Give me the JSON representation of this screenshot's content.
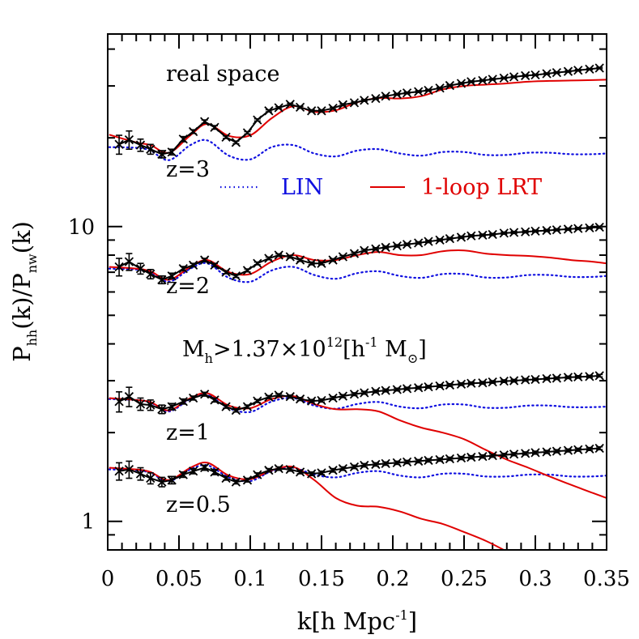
{
  "chart_data": {
    "type": "line",
    "title": "",
    "xlabel": {
      "main": "k[h Mpc",
      "sup": "-1",
      "close": "]"
    },
    "ylabel": {
      "a": "P",
      "a_sub": "hh",
      "b": "(k)/P",
      "b_sub": "nw",
      "c": "(k)"
    },
    "x_scale": "linear",
    "y_scale": "log",
    "xlim": [
      0,
      0.35
    ],
    "ylim": [
      0.8,
      45
    ],
    "x_ticks": [
      0,
      0.05,
      0.1,
      0.15,
      0.2,
      0.25,
      0.3,
      0.35
    ],
    "x_tick_labels": [
      "0",
      "0.05",
      "0.1",
      "0.15",
      "0.2",
      "0.25",
      "0.3",
      "0.35"
    ],
    "y_ticks": [
      1,
      10
    ],
    "y_tick_labels": [
      "1",
      "10"
    ],
    "annotations": {
      "real_space": "real space",
      "mass_cut": {
        "a": "M",
        "a_sub": "h",
        "b": ">1.37×10",
        "b_sup": "12",
        "c": "[h",
        "c_sup": "-1",
        "d": " M",
        "d_sub": "⊙",
        "e": "]"
      },
      "redshifts": [
        "z=3",
        "z=2",
        "z=1",
        "z=0.5"
      ]
    },
    "legend": {
      "placement": "upper-center",
      "entries": [
        {
          "label": "LIN",
          "style": "dotted",
          "color": "#1010e0"
        },
        {
          "label": "1-loop LRT",
          "style": "solid",
          "color": "#e00000"
        }
      ]
    },
    "colors": {
      "sim": "#000000",
      "lin": "#1010e0",
      "lrt": "#e00000"
    },
    "panels": [
      {
        "z": "3",
        "sim": {
          "x": [
            0.008,
            0.015,
            0.023,
            0.03,
            0.038,
            0.045,
            0.053,
            0.06,
            0.068,
            0.075,
            0.083,
            0.09,
            0.098,
            0.105,
            0.113,
            0.12,
            0.128,
            0.135,
            0.143,
            0.15,
            0.158,
            0.165,
            0.173,
            0.18,
            0.188,
            0.195,
            0.203,
            0.21,
            0.218,
            0.225,
            0.233,
            0.24,
            0.248,
            0.255,
            0.263,
            0.27,
            0.278,
            0.285,
            0.293,
            0.3,
            0.308,
            0.315,
            0.323,
            0.33,
            0.338,
            0.345
          ],
          "y": [
            19.0,
            19.7,
            18.9,
            18.3,
            17.6,
            17.9,
            19.8,
            21.0,
            22.7,
            21.7,
            20.1,
            19.3,
            20.8,
            23.0,
            24.7,
            25.3,
            26.0,
            25.4,
            24.7,
            24.7,
            25.2,
            25.9,
            26.3,
            26.8,
            27.2,
            27.7,
            28.1,
            28.4,
            28.7,
            29.0,
            29.5,
            30.1,
            30.6,
            31.0,
            31.3,
            31.6,
            31.9,
            32.2,
            32.5,
            32.7,
            33.0,
            33.3,
            33.6,
            33.9,
            34.2,
            34.5
          ],
          "err": [
            1.4,
            1.4,
            0.9,
            0.7,
            0.5,
            0.4,
            0.4,
            0.3,
            0.3,
            0.3,
            0.2,
            0.2,
            0.2,
            0.2,
            0.2,
            0.2,
            0.2,
            0.2,
            0.2,
            0.2,
            0.2,
            0.2,
            0.2,
            0.2,
            0.2,
            0.2,
            0.2,
            0.2,
            0.2,
            0.2,
            0.2,
            0.2,
            0.2,
            0.2,
            0.2,
            0.2,
            0.2,
            0.2,
            0.2,
            0.2,
            0.2,
            0.2,
            0.2,
            0.2,
            0.2,
            0.2
          ]
        },
        "lin": {
          "x": [
            0.001,
            0.02,
            0.03,
            0.043,
            0.058,
            0.07,
            0.085,
            0.1,
            0.115,
            0.13,
            0.145,
            0.16,
            0.175,
            0.19,
            0.205,
            0.22,
            0.235,
            0.25,
            0.265,
            0.28,
            0.295,
            0.31,
            0.325,
            0.34,
            0.35
          ],
          "y": [
            18.6,
            18.5,
            18.1,
            16.8,
            18.9,
            19.6,
            17.4,
            16.9,
            18.6,
            18.9,
            17.7,
            17.3,
            18.1,
            18.3,
            17.7,
            17.4,
            17.9,
            17.9,
            17.5,
            17.5,
            17.8,
            17.8,
            17.6,
            17.6,
            17.7
          ]
        },
        "lrt": {
          "x": [
            0.001,
            0.02,
            0.03,
            0.043,
            0.058,
            0.07,
            0.085,
            0.1,
            0.115,
            0.13,
            0.145,
            0.16,
            0.175,
            0.19,
            0.205,
            0.22,
            0.235,
            0.25,
            0.265,
            0.28,
            0.295,
            0.31,
            0.325,
            0.34,
            0.35
          ],
          "y": [
            20.5,
            19.3,
            18.9,
            17.8,
            20.4,
            22.3,
            20.3,
            20.4,
            23.3,
            25.6,
            24.5,
            24.8,
            26.4,
            27.3,
            27.2,
            27.7,
            29.2,
            30.0,
            30.3,
            30.6,
            31.0,
            31.2,
            31.3,
            31.4,
            31.5
          ]
        }
      },
      {
        "z": "2",
        "sim": {
          "x": [
            0.008,
            0.015,
            0.023,
            0.03,
            0.038,
            0.045,
            0.053,
            0.06,
            0.068,
            0.075,
            0.083,
            0.09,
            0.098,
            0.105,
            0.113,
            0.12,
            0.128,
            0.135,
            0.143,
            0.15,
            0.158,
            0.165,
            0.173,
            0.18,
            0.188,
            0.195,
            0.203,
            0.21,
            0.218,
            0.225,
            0.233,
            0.24,
            0.248,
            0.255,
            0.263,
            0.27,
            0.278,
            0.285,
            0.293,
            0.3,
            0.308,
            0.315,
            0.323,
            0.33,
            0.338,
            0.345
          ],
          "y": [
            7.3,
            7.6,
            7.2,
            6.9,
            6.6,
            6.8,
            7.2,
            7.4,
            7.7,
            7.4,
            7.0,
            6.8,
            7.1,
            7.5,
            7.8,
            8.0,
            7.9,
            7.7,
            7.5,
            7.5,
            7.7,
            7.9,
            8.1,
            8.3,
            8.4,
            8.5,
            8.6,
            8.7,
            8.8,
            8.9,
            9.0,
            9.1,
            9.2,
            9.3,
            9.35,
            9.4,
            9.5,
            9.55,
            9.6,
            9.65,
            9.7,
            9.75,
            9.8,
            9.85,
            9.9,
            9.95
          ],
          "err": [
            0.5,
            0.5,
            0.3,
            0.25,
            0.2,
            0.15,
            0.12,
            0.1,
            0.1,
            0.1,
            0.08,
            0.08,
            0.08,
            0.08,
            0.08,
            0.08,
            0.08,
            0.08,
            0.08,
            0.08,
            0.08,
            0.08,
            0.08,
            0.08,
            0.08,
            0.08,
            0.08,
            0.08,
            0.08,
            0.08,
            0.08,
            0.08,
            0.08,
            0.08,
            0.08,
            0.08,
            0.08,
            0.08,
            0.08,
            0.08,
            0.08,
            0.08,
            0.08,
            0.08,
            0.08,
            0.08
          ]
        },
        "lin": {
          "x": [
            0.001,
            0.02,
            0.03,
            0.043,
            0.058,
            0.07,
            0.085,
            0.1,
            0.115,
            0.13,
            0.145,
            0.16,
            0.175,
            0.19,
            0.205,
            0.22,
            0.235,
            0.25,
            0.265,
            0.28,
            0.295,
            0.31,
            0.325,
            0.34,
            0.35
          ],
          "y": [
            7.2,
            7.15,
            7.0,
            6.5,
            7.2,
            7.5,
            6.7,
            6.5,
            7.1,
            7.3,
            6.85,
            6.65,
            6.95,
            7.05,
            6.8,
            6.7,
            6.9,
            6.9,
            6.72,
            6.72,
            6.85,
            6.85,
            6.75,
            6.75,
            6.8
          ]
        },
        "lrt": {
          "x": [
            0.001,
            0.02,
            0.03,
            0.043,
            0.058,
            0.07,
            0.085,
            0.1,
            0.115,
            0.13,
            0.145,
            0.16,
            0.175,
            0.19,
            0.205,
            0.22,
            0.235,
            0.25,
            0.265,
            0.28,
            0.295,
            0.31,
            0.325,
            0.34,
            0.35
          ],
          "y": [
            7.3,
            7.2,
            7.05,
            6.6,
            7.3,
            7.7,
            7.0,
            6.9,
            7.6,
            8.0,
            7.7,
            7.7,
            8.0,
            8.2,
            8.0,
            8.0,
            8.25,
            8.3,
            8.1,
            8.0,
            7.95,
            7.85,
            7.7,
            7.6,
            7.5
          ]
        }
      },
      {
        "z": "1",
        "sim": {
          "x": [
            0.008,
            0.015,
            0.023,
            0.03,
            0.038,
            0.045,
            0.053,
            0.06,
            0.068,
            0.075,
            0.083,
            0.09,
            0.098,
            0.105,
            0.113,
            0.12,
            0.128,
            0.135,
            0.143,
            0.15,
            0.158,
            0.165,
            0.173,
            0.18,
            0.188,
            0.195,
            0.203,
            0.21,
            0.218,
            0.225,
            0.233,
            0.24,
            0.248,
            0.255,
            0.263,
            0.27,
            0.278,
            0.285,
            0.293,
            0.3,
            0.308,
            0.315,
            0.323,
            0.33,
            0.338,
            0.345
          ],
          "y": [
            2.55,
            2.65,
            2.5,
            2.48,
            2.4,
            2.45,
            2.55,
            2.62,
            2.7,
            2.58,
            2.45,
            2.38,
            2.45,
            2.56,
            2.64,
            2.68,
            2.65,
            2.6,
            2.56,
            2.57,
            2.62,
            2.66,
            2.7,
            2.73,
            2.76,
            2.78,
            2.8,
            2.82,
            2.84,
            2.86,
            2.88,
            2.9,
            2.92,
            2.94,
            2.95,
            2.97,
            2.99,
            3.0,
            3.02,
            3.03,
            3.05,
            3.06,
            3.08,
            3.09,
            3.1,
            3.12
          ],
          "err": [
            0.2,
            0.2,
            0.12,
            0.1,
            0.08,
            0.06,
            0.05,
            0.04,
            0.04,
            0.04,
            0.03,
            0.03,
            0.03,
            0.03,
            0.03,
            0.03,
            0.03,
            0.03,
            0.03,
            0.03,
            0.03,
            0.03,
            0.03,
            0.03,
            0.03,
            0.03,
            0.03,
            0.03,
            0.03,
            0.03,
            0.03,
            0.03,
            0.03,
            0.03,
            0.03,
            0.03,
            0.03,
            0.03,
            0.03,
            0.03,
            0.03,
            0.03,
            0.03,
            0.03,
            0.03,
            0.03
          ]
        },
        "lin": {
          "x": [
            0.001,
            0.02,
            0.03,
            0.043,
            0.058,
            0.07,
            0.085,
            0.1,
            0.115,
            0.13,
            0.145,
            0.16,
            0.175,
            0.19,
            0.205,
            0.22,
            0.235,
            0.25,
            0.265,
            0.28,
            0.295,
            0.31,
            0.325,
            0.34,
            0.35
          ],
          "y": [
            2.6,
            2.58,
            2.53,
            2.36,
            2.6,
            2.68,
            2.42,
            2.35,
            2.55,
            2.62,
            2.47,
            2.41,
            2.5,
            2.54,
            2.45,
            2.42,
            2.49,
            2.49,
            2.43,
            2.43,
            2.47,
            2.47,
            2.44,
            2.44,
            2.45
          ]
        },
        "lrt": {
          "x": [
            0.001,
            0.02,
            0.03,
            0.043,
            0.058,
            0.07,
            0.085,
            0.1,
            0.115,
            0.13,
            0.145,
            0.16,
            0.175,
            0.19,
            0.205,
            0.22,
            0.235,
            0.25,
            0.265,
            0.28,
            0.295,
            0.31,
            0.325,
            0.34,
            0.35
          ],
          "y": [
            2.62,
            2.58,
            2.54,
            2.38,
            2.62,
            2.72,
            2.47,
            2.42,
            2.6,
            2.66,
            2.5,
            2.4,
            2.4,
            2.36,
            2.2,
            2.08,
            2.0,
            1.9,
            1.75,
            1.62,
            1.52,
            1.42,
            1.33,
            1.25,
            1.2
          ]
        }
      },
      {
        "z": "0.5",
        "sim": {
          "x": [
            0.008,
            0.015,
            0.023,
            0.03,
            0.038,
            0.045,
            0.053,
            0.06,
            0.068,
            0.075,
            0.083,
            0.09,
            0.098,
            0.105,
            0.113,
            0.12,
            0.128,
            0.135,
            0.143,
            0.15,
            0.158,
            0.165,
            0.173,
            0.18,
            0.188,
            0.195,
            0.203,
            0.21,
            0.218,
            0.225,
            0.233,
            0.24,
            0.248,
            0.255,
            0.263,
            0.27,
            0.278,
            0.285,
            0.293,
            0.3,
            0.308,
            0.315,
            0.323,
            0.33,
            0.338,
            0.345
          ],
          "y": [
            1.48,
            1.5,
            1.45,
            1.4,
            1.36,
            1.38,
            1.44,
            1.48,
            1.52,
            1.47,
            1.4,
            1.36,
            1.38,
            1.44,
            1.49,
            1.51,
            1.5,
            1.47,
            1.45,
            1.46,
            1.49,
            1.51,
            1.53,
            1.55,
            1.56,
            1.57,
            1.58,
            1.59,
            1.6,
            1.61,
            1.62,
            1.63,
            1.64,
            1.65,
            1.66,
            1.67,
            1.68,
            1.69,
            1.7,
            1.71,
            1.72,
            1.73,
            1.74,
            1.75,
            1.76,
            1.77
          ],
          "err": [
            0.1,
            0.1,
            0.07,
            0.06,
            0.05,
            0.04,
            0.03,
            0.03,
            0.03,
            0.03,
            0.02,
            0.02,
            0.02,
            0.02,
            0.02,
            0.02,
            0.02,
            0.02,
            0.02,
            0.02,
            0.02,
            0.02,
            0.02,
            0.02,
            0.02,
            0.02,
            0.02,
            0.02,
            0.02,
            0.02,
            0.02,
            0.02,
            0.02,
            0.02,
            0.02,
            0.02,
            0.02,
            0.02,
            0.02,
            0.02,
            0.02,
            0.02,
            0.02,
            0.02,
            0.02,
            0.02
          ]
        },
        "lin": {
          "x": [
            0.001,
            0.02,
            0.03,
            0.043,
            0.058,
            0.07,
            0.085,
            0.1,
            0.115,
            0.13,
            0.145,
            0.16,
            0.175,
            0.19,
            0.205,
            0.22,
            0.235,
            0.25,
            0.265,
            0.28,
            0.295,
            0.31,
            0.325,
            0.34,
            0.35
          ],
          "y": [
            1.5,
            1.49,
            1.46,
            1.37,
            1.5,
            1.55,
            1.41,
            1.37,
            1.48,
            1.52,
            1.44,
            1.41,
            1.46,
            1.48,
            1.43,
            1.41,
            1.45,
            1.45,
            1.42,
            1.42,
            1.44,
            1.44,
            1.42,
            1.42,
            1.43
          ]
        },
        "lrt": {
          "x": [
            0.001,
            0.02,
            0.03,
            0.043,
            0.058,
            0.07,
            0.085,
            0.1,
            0.115,
            0.13,
            0.145,
            0.16,
            0.175,
            0.19,
            0.205,
            0.22,
            0.235,
            0.25,
            0.265,
            0.28,
            0.295,
            0.31,
            0.325,
            0.34,
            0.35
          ],
          "y": [
            1.52,
            1.5,
            1.47,
            1.38,
            1.52,
            1.58,
            1.43,
            1.39,
            1.49,
            1.53,
            1.38,
            1.2,
            1.13,
            1.12,
            1.08,
            1.02,
            0.98,
            0.92,
            0.86,
            0.79,
            0.72,
            0.66,
            0.6,
            0.55,
            0.52
          ]
        }
      }
    ]
  }
}
